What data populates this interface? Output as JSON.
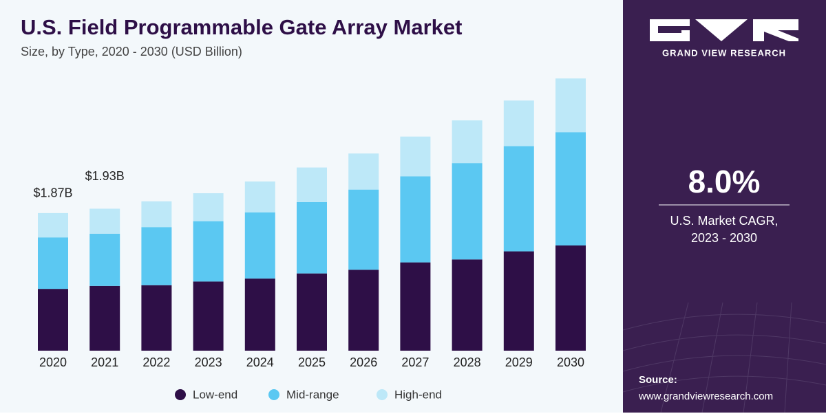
{
  "chart_data": {
    "type": "stacked-bar",
    "title": "U.S. Field Programmable Gate Array Market",
    "subtitle": "Size, by Type, 2020 - 2030 (USD Billion)",
    "categories": [
      "2020",
      "2021",
      "2022",
      "2023",
      "2024",
      "2025",
      "2026",
      "2027",
      "2028",
      "2029",
      "2030"
    ],
    "series": [
      {
        "name": "Low-end",
        "color": "#2e0f47",
        "values": [
          0.84,
          0.88,
          0.89,
          0.94,
          0.98,
          1.05,
          1.1,
          1.2,
          1.24,
          1.35,
          1.43
        ]
      },
      {
        "name": "Mid-range",
        "color": "#5bc8f2",
        "values": [
          0.7,
          0.71,
          0.79,
          0.82,
          0.9,
          0.97,
          1.09,
          1.17,
          1.31,
          1.43,
          1.54
        ]
      },
      {
        "name": "High-end",
        "color": "#bde8f8",
        "values": [
          0.33,
          0.34,
          0.35,
          0.38,
          0.42,
          0.47,
          0.49,
          0.54,
          0.58,
          0.62,
          0.73
        ]
      }
    ],
    "totals": {
      "values": [
        1.87,
        1.93
      ],
      "value_labels": [
        "$1.87B",
        "$1.93B"
      ]
    }
  },
  "sidebar": {
    "brand": "GRAND VIEW RESEARCH",
    "cagr": "8.0%",
    "cagr_label": [
      "U.S. Market CAGR,",
      "2023 - 2030"
    ],
    "source_title": "Source:",
    "source_url": "www.grandviewresearch.com"
  }
}
